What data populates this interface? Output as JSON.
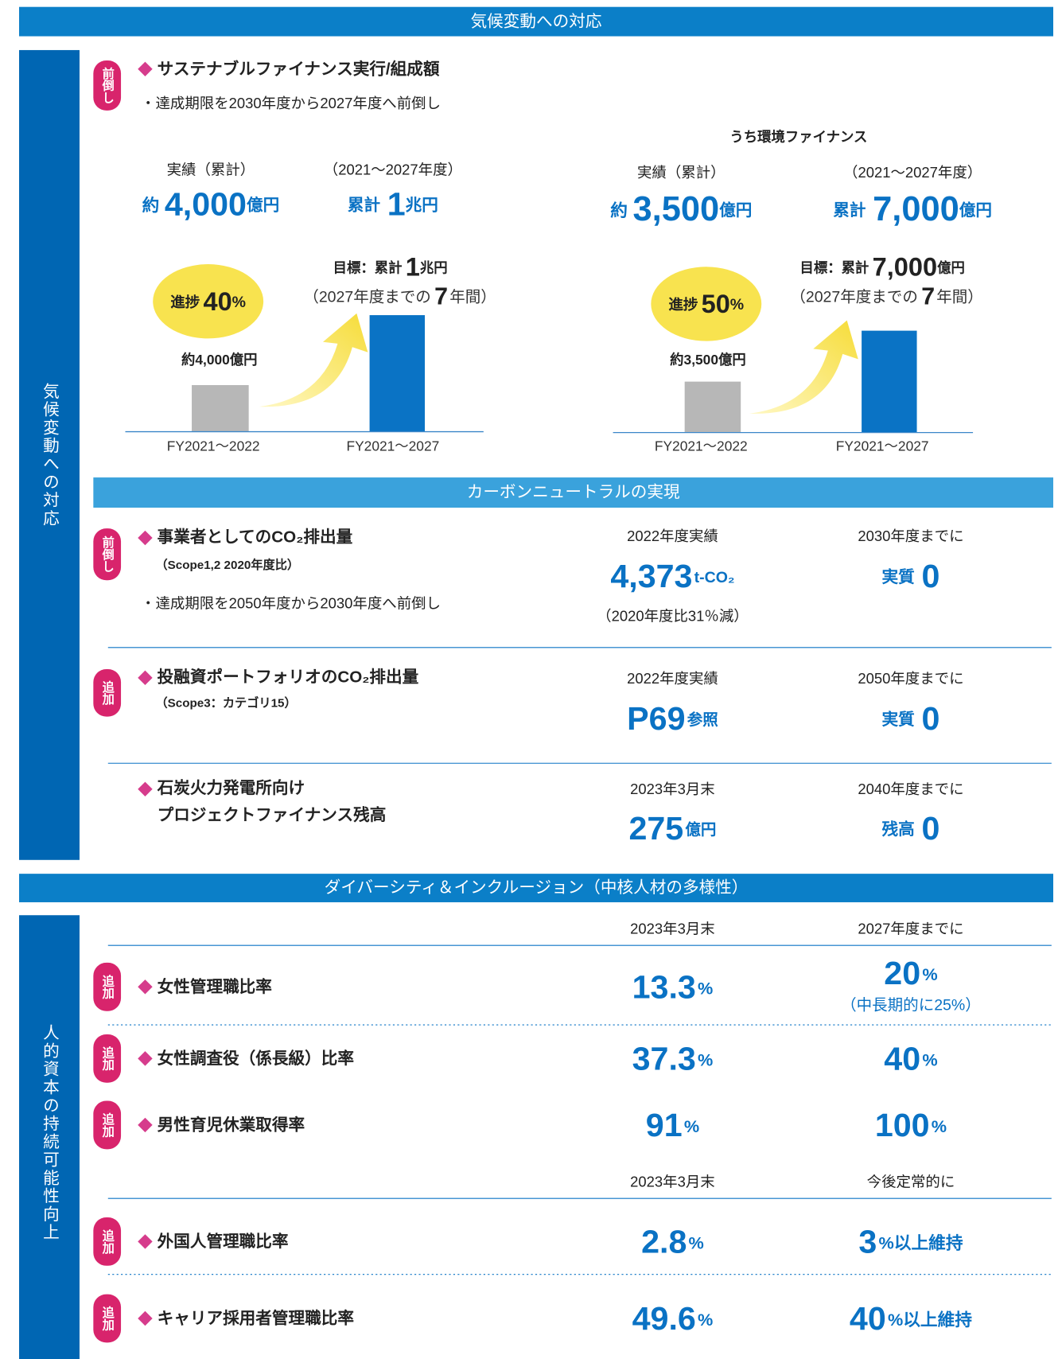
{
  "climate": {
    "header": "気候変動への対応",
    "side_label": "気候変動への対応",
    "finance": {
      "badge": "前倒し",
      "title": "サステナブルファイナンス実行/組成額",
      "note": "・達成期限を2030年度から2027年度へ前倒し",
      "panels": [
        {
          "actual_label": "実績（累計）",
          "period_label": "（2021～2027年度）",
          "actual": {
            "prefix": "約",
            "value": "4,000",
            "unit": "億円"
          },
          "target": {
            "prefix": "累計",
            "value": "1",
            "unit": "兆円"
          },
          "goal": {
            "prefix": "目標：累計",
            "value": "1",
            "unit": "兆円"
          },
          "goal_period": {
            "prefix": "（2027年度までの",
            "value": "7",
            "unit": "年間）"
          },
          "progress": {
            "label": "進捗",
            "value": 40,
            "unit": "%"
          },
          "bar_label": "約4,000億円",
          "categories": [
            "FY2021～2022",
            "FY2021～2027"
          ]
        },
        {
          "heading": "うち環境ファイナンス",
          "actual_label": "実績（累計）",
          "period_label": "（2021～2027年度）",
          "actual": {
            "prefix": "約",
            "value": "3,500",
            "unit": "億円"
          },
          "target": {
            "prefix": "累計",
            "value": "7,000",
            "unit": "億円"
          },
          "goal": {
            "prefix": "目標：累計",
            "value": "7,000",
            "unit": "億円"
          },
          "goal_period": {
            "prefix": "（2027年度までの",
            "value": "7",
            "unit": "年間）"
          },
          "progress": {
            "label": "進捗",
            "value": 50,
            "unit": "%"
          },
          "bar_label": "約3,500億円",
          "categories": [
            "FY2021～2022",
            "FY2021～2027"
          ]
        }
      ]
    },
    "carbon": {
      "header": "カーボンニュートラルの実現",
      "rows": [
        {
          "badge": "前倒し",
          "title": [
            "事業者としてのCO₂排出量"
          ],
          "detail": "（Scope1,2 2020年度比）",
          "note": "・達成期限を2050年度から2030年度へ前倒し",
          "current": {
            "label": "2022年度実績",
            "value": "4,373",
            "unit": "t-CO₂",
            "note": "（2020年度比31％減）"
          },
          "target": {
            "label": "2030年度までに",
            "prefix": "実質",
            "value": 0
          }
        },
        {
          "badge": "追加",
          "title": [
            "投融資ポートフォリオのCO₂排出量"
          ],
          "detail": "（Scope3：カテゴリ15）",
          "current": {
            "label": "2022年度実績",
            "value": "P69",
            "unit": "参照"
          },
          "target": {
            "label": "2050年度までに",
            "prefix": "実質",
            "value": 0
          }
        },
        {
          "title": [
            "石炭火力発電所向け",
            "プロジェクトファイナンス残高"
          ],
          "current": {
            "label": "2023年3月末",
            "value": "275",
            "unit": "億円"
          },
          "target": {
            "label": "2040年度までに",
            "prefix": "残高",
            "value": 0
          }
        }
      ]
    }
  },
  "diversity": {
    "header": "ダイバーシティ＆インクルージョン（中核人材の多様性）",
    "side_label": "人的資本の持続可能性向上",
    "groups": [
      {
        "columns": [
          "2023年3月末",
          "2027年度までに"
        ],
        "rows": [
          {
            "badge": "追加",
            "title": "女性管理職比率",
            "current": {
              "value": 13.3,
              "unit": "%"
            },
            "target": {
              "value": 20,
              "unit": "%",
              "note": "（中長期的に25%）"
            }
          },
          {
            "badge": "追加",
            "title": "女性調査役（係長級）比率",
            "current": {
              "value": 37.3,
              "unit": "%"
            },
            "target": {
              "value": 40,
              "unit": "%"
            }
          },
          {
            "badge": "追加",
            "title": "男性育児休業取得率",
            "current": {
              "value": 91,
              "unit": "%"
            },
            "target": {
              "value": 100,
              "unit": "%"
            }
          }
        ]
      },
      {
        "columns": [
          "2023年3月末",
          "今後定常的に"
        ],
        "rows": [
          {
            "badge": "追加",
            "title": "外国人管理職比率",
            "current": {
              "value": 2.8,
              "unit": "%"
            },
            "target": {
              "value": 3,
              "unit": "%以上維持"
            }
          },
          {
            "badge": "追加",
            "title": "キャリア採用者管理職比率",
            "current": {
              "value": 49.6,
              "unit": "%"
            },
            "target": {
              "value": 40,
              "unit": "%以上維持"
            }
          }
        ]
      }
    ]
  }
}
